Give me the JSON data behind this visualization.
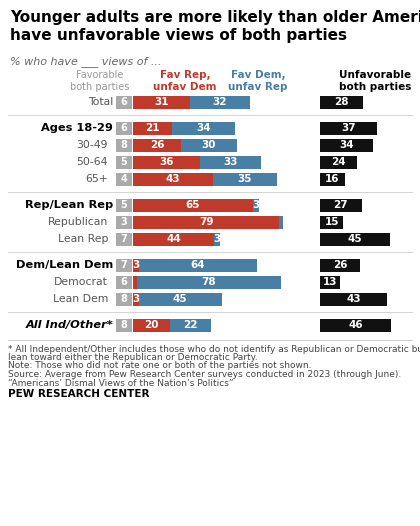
{
  "title": "Younger adults are more likely than older Americans to\nhave unfavorable views of both parties",
  "subtitle": "% who have ___ views of ...",
  "rows": [
    {
      "label": "Total",
      "bold": false,
      "italic": false,
      "indent": false,
      "fav_both": 6,
      "fav_rep": 31,
      "fav_dem": 32,
      "unfav_both": 28
    },
    {
      "label": "Ages 18-29",
      "bold": true,
      "italic": false,
      "indent": false,
      "fav_both": 6,
      "fav_rep": 21,
      "fav_dem": 34,
      "unfav_both": 37
    },
    {
      "label": "30-49",
      "bold": false,
      "italic": false,
      "indent": true,
      "fav_both": 8,
      "fav_rep": 26,
      "fav_dem": 30,
      "unfav_both": 34
    },
    {
      "label": "50-64",
      "bold": false,
      "italic": false,
      "indent": true,
      "fav_both": 5,
      "fav_rep": 36,
      "fav_dem": 33,
      "unfav_both": 24
    },
    {
      "label": "65+",
      "bold": false,
      "italic": false,
      "indent": true,
      "fav_both": 4,
      "fav_rep": 43,
      "fav_dem": 35,
      "unfav_both": 16
    },
    {
      "label": "Rep/Lean Rep",
      "bold": true,
      "italic": false,
      "indent": false,
      "fav_both": 5,
      "fav_rep": 65,
      "fav_dem": 3,
      "unfav_both": 27
    },
    {
      "label": "Republican",
      "bold": false,
      "italic": false,
      "indent": true,
      "fav_both": 3,
      "fav_rep": 79,
      "fav_dem": 2,
      "unfav_both": 15
    },
    {
      "label": "Lean Rep",
      "bold": false,
      "italic": false,
      "indent": true,
      "fav_both": 7,
      "fav_rep": 44,
      "fav_dem": 3,
      "unfav_both": 45
    },
    {
      "label": "Dem/Lean Dem",
      "bold": true,
      "italic": false,
      "indent": false,
      "fav_both": 7,
      "fav_rep": 3,
      "fav_dem": 64,
      "unfav_both": 26
    },
    {
      "label": "Democrat",
      "bold": false,
      "italic": false,
      "indent": true,
      "fav_both": 6,
      "fav_rep": 2,
      "fav_dem": 78,
      "unfav_both": 13
    },
    {
      "label": "Lean Dem",
      "bold": false,
      "italic": false,
      "indent": true,
      "fav_both": 8,
      "fav_rep": 3,
      "fav_dem": 45,
      "unfav_both": 43
    },
    {
      "label": "All Ind/Other*",
      "bold": true,
      "italic": true,
      "indent": false,
      "fav_both": 8,
      "fav_rep": 20,
      "fav_dem": 22,
      "unfav_both": 46
    }
  ],
  "separators_after": [
    0,
    4,
    7,
    10
  ],
  "color_fav_both": "#aaaaaa",
  "color_fav_rep": "#bf3a2b",
  "color_fav_dem": "#4a7fa5",
  "color_unfav_both": "#111111",
  "footnote1": "* All Independent/Other includes those who do not identify as Republican or Democratic but",
  "footnote1b": "lean toward either the Republican or Democratic Party.",
  "footnote2": "Note: Those who did not rate one or both of the parties not shown.",
  "footnote3a": "Source: Average from Pew Research Center surveys conducted in 2023 (through June).",
  "footnote3b": "“Americans’ Dismal Views of the Nation’s Politics”",
  "footnote4": "PEW RESEARCH CENTER"
}
